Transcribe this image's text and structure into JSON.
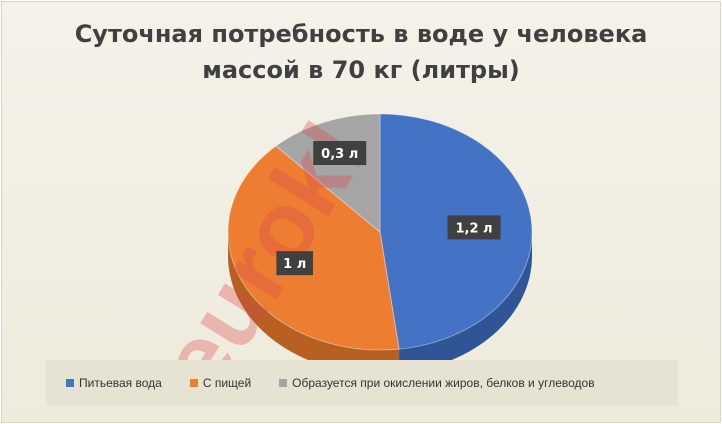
{
  "chart_data": {
    "type": "pie",
    "title_lines": [
      "Суточная потребность в воде у человека",
      "массой в 70 кг (литры)"
    ],
    "slices": [
      {
        "name": "Питьевая вода",
        "value": 1.2,
        "label": "1,2 л",
        "color": "#4472c4",
        "side_color": "#2f5597"
      },
      {
        "name": "С пищей",
        "value": 1.0,
        "label": "1 л",
        "color": "#ed7d31",
        "side_color": "#b85f22"
      },
      {
        "name": "Образуется при окислении жиров, белков и углеводов",
        "value": 0.3,
        "label": "0,3 л",
        "color": "#a5a5a5",
        "side_color": "#7b7b7b"
      }
    ],
    "legend_position": "bottom"
  },
  "watermark": {
    "text": "eurok!",
    "colors": [
      "#d94a4a",
      "#f0a040",
      "#a8c83c"
    ]
  }
}
